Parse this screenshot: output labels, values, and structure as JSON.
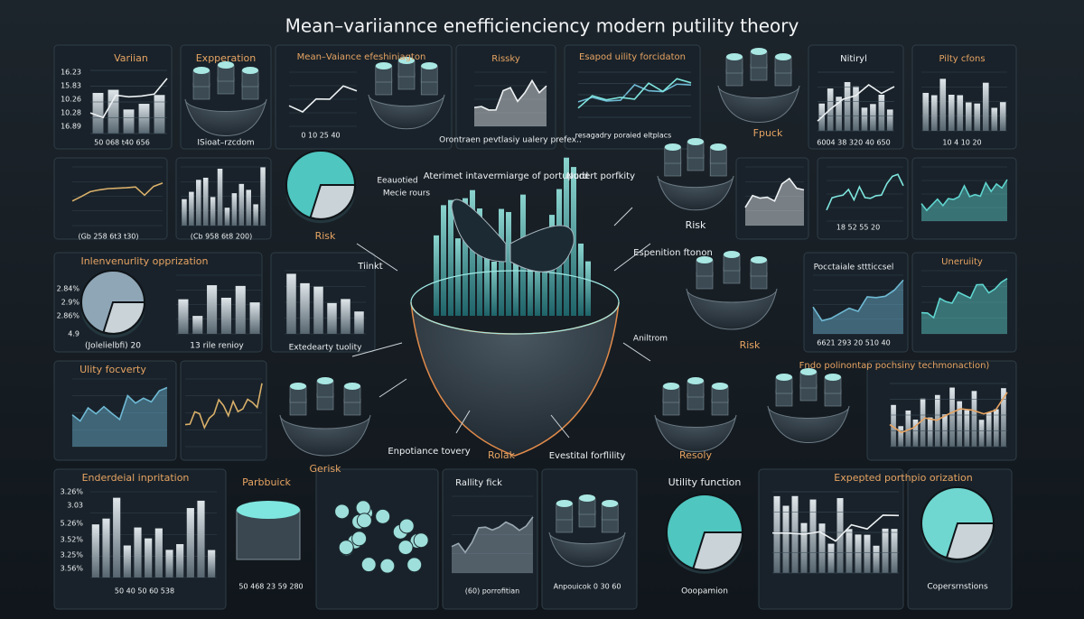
{
  "title": "Mean–variiannce enefficienciency modern putility theory",
  "labels": [
    "Variian",
    "16.23",
    "15.83",
    "10.26",
    "10.28",
    "16.89",
    "50 068 t40 656",
    "Expperation",
    "ISioat–rzcdom",
    "Mean–Vaiance efeshiniagton",
    "0 10 25 40",
    "Rissky",
    "Orontraen pevtlasiy ualery prefex..",
    "Esapod uility forcidaton",
    "resagadry poraied eltplacs",
    "Fpuck",
    "Nitiryl",
    "6004 38 320 40 650",
    "Pilty cfons",
    "10 4 10 20",
    "Risk",
    "Eeauotied",
    "Mecie rours",
    "Aterimet intavermiarge of portupord",
    "Nudert porfkity",
    "Risk",
    "(Gb 258 6t3 t30)",
    "(Cb 958 6t8 200)",
    "18 52 55 20",
    "Inlenvenurlity opprization",
    "2.84%",
    "2.9%",
    "2.86%",
    "4.9",
    "(Jolelielbfi) 20",
    "13 rile renioy",
    "Tiinkt",
    "Extedearty tuolity",
    "Espenition ftonon",
    "Aniltrom",
    "Risk",
    "Pocctaiale sttticcsel",
    "6621 293 20 510 40",
    "Uneruiity",
    "Ulity focverty",
    "Gerisk",
    "Enpotiance tovery",
    "Rolak",
    "Evestital forflility",
    "Resoly",
    "Fndo polinontap pochsiny techmonaction)",
    "Enderdeial inpritation",
    "3.26%",
    "3.03",
    "5.26%",
    "3.52%",
    "3.25%",
    "3.56%",
    "50 40 50 60 538",
    "Parbbuick",
    "50 468 23 59 280",
    "Rallity fick",
    "(60) porrofitian",
    "Anpouicok 0 30 60",
    "Utility function",
    "Ooopamion",
    "Expepted porthpio orization",
    "Copersrnstions"
  ]
}
